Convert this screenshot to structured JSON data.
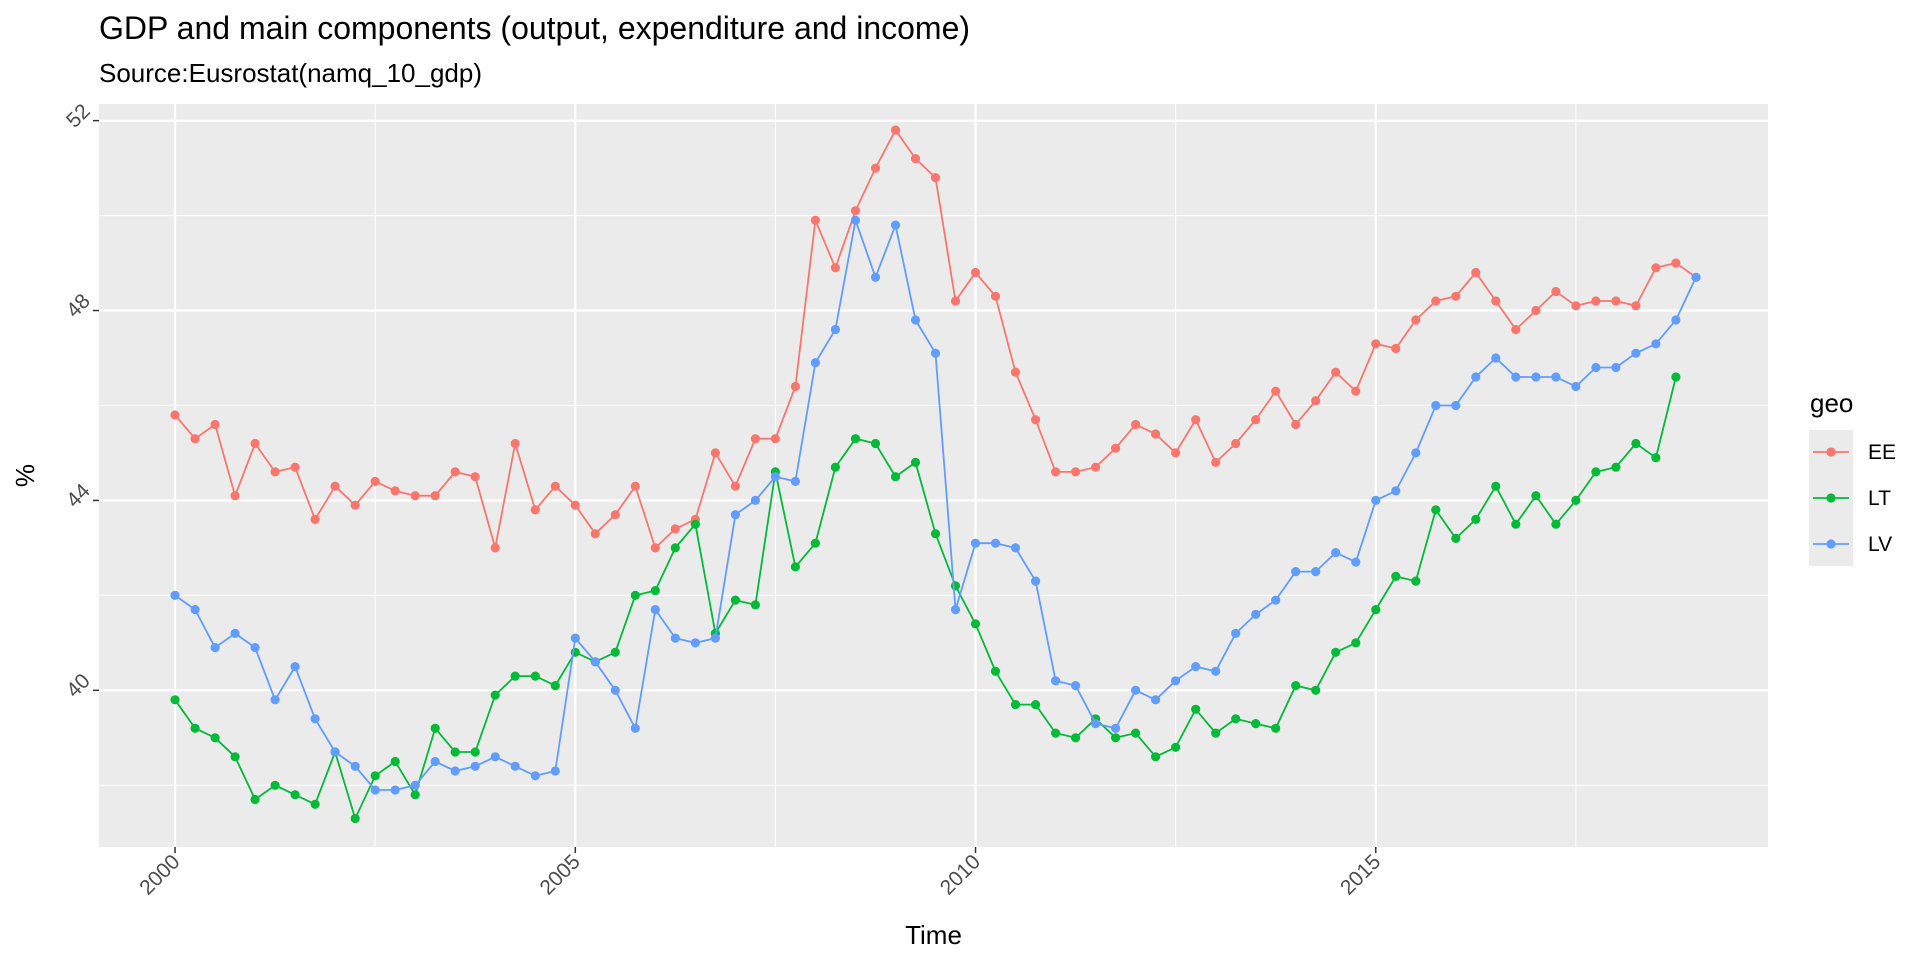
{
  "chart_data": {
    "type": "line",
    "title": "GDP and main components (output, expenditure and income)",
    "subtitle": "Source:Eusrostat(namq_10_gdp)",
    "xlabel": "Time",
    "ylabel": "%",
    "legend_title": "geo",
    "legend_position": "right",
    "grid": true,
    "xlim": [
      1999.05,
      2019.9
    ],
    "ylim": [
      36.7,
      52.35
    ],
    "x_ticks": [
      2000,
      2005,
      2010,
      2015
    ],
    "y_ticks": [
      40,
      44,
      48,
      52
    ],
    "x_start": 2000,
    "x_step": 0.25,
    "series": [
      {
        "name": "EE",
        "color": "#F8766D",
        "values": [
          45.8,
          45.3,
          45.6,
          44.1,
          45.2,
          44.6,
          44.7,
          43.6,
          44.3,
          43.9,
          44.4,
          44.2,
          44.1,
          44.1,
          44.6,
          44.5,
          43.0,
          45.2,
          43.8,
          44.3,
          43.9,
          43.3,
          43.7,
          44.3,
          43.0,
          43.4,
          43.6,
          45.0,
          44.3,
          45.3,
          45.3,
          46.4,
          49.9,
          48.9,
          50.1,
          51.0,
          51.8,
          51.2,
          50.8,
          48.2,
          48.8,
          48.3,
          46.7,
          45.7,
          44.6,
          44.6,
          44.7,
          45.1,
          45.6,
          45.4,
          45.0,
          45.7,
          44.8,
          45.2,
          45.7,
          46.3,
          45.6,
          46.1,
          46.7,
          46.3,
          47.3,
          47.2,
          47.8,
          48.2,
          48.3,
          48.8,
          48.2,
          47.6,
          48.0,
          48.4,
          48.1,
          48.2,
          48.2,
          48.1,
          48.9,
          49.0,
          48.7
        ]
      },
      {
        "name": "LT",
        "color": "#00BA38",
        "values": [
          39.8,
          39.2,
          39.0,
          38.6,
          37.7,
          38.0,
          37.8,
          37.6,
          38.7,
          37.3,
          38.2,
          38.5,
          37.8,
          39.2,
          38.7,
          38.7,
          39.9,
          40.3,
          40.3,
          40.1,
          40.8,
          40.6,
          40.8,
          42.0,
          42.1,
          43.0,
          43.5,
          41.2,
          41.9,
          41.8,
          44.6,
          42.6,
          43.1,
          44.7,
          45.3,
          45.2,
          44.5,
          44.8,
          43.3,
          42.2,
          41.4,
          40.4,
          39.7,
          39.7,
          39.1,
          39.0,
          39.4,
          39.0,
          39.1,
          38.6,
          38.8,
          39.6,
          39.1,
          39.4,
          39.3,
          39.2,
          40.1,
          40.0,
          40.8,
          41.0,
          41.7,
          42.4,
          42.3,
          43.8,
          43.2,
          43.6,
          44.3,
          43.5,
          44.1,
          43.5,
          44.0,
          44.6,
          44.7,
          45.2,
          44.9,
          46.6
        ]
      },
      {
        "name": "LV",
        "color": "#619CFF",
        "values": [
          42.0,
          41.7,
          40.9,
          41.2,
          40.9,
          39.8,
          40.5,
          39.4,
          38.7,
          38.4,
          37.9,
          37.9,
          38.0,
          38.5,
          38.3,
          38.4,
          38.6,
          38.4,
          38.2,
          38.3,
          41.1,
          40.6,
          40.0,
          39.2,
          41.7,
          41.1,
          41.0,
          41.1,
          43.7,
          44.0,
          44.5,
          44.4,
          46.9,
          47.6,
          49.9,
          48.7,
          49.8,
          47.8,
          47.1,
          41.7,
          43.1,
          43.1,
          43.0,
          42.3,
          40.2,
          40.1,
          39.3,
          39.2,
          40.0,
          39.8,
          40.2,
          40.5,
          40.4,
          41.2,
          41.6,
          41.9,
          42.5,
          42.5,
          42.9,
          42.7,
          44.0,
          44.2,
          45.0,
          46.0,
          46.0,
          46.6,
          47.0,
          46.6,
          46.6,
          46.6,
          46.4,
          46.8,
          46.8,
          47.1,
          47.3,
          47.8,
          48.7
        ]
      }
    ]
  }
}
